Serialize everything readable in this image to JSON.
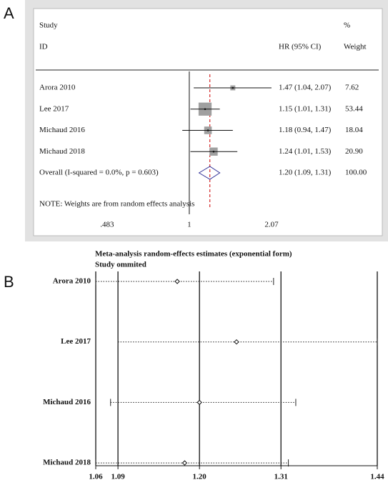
{
  "chart_data": [
    {
      "type": "forest",
      "panel": "A",
      "header": {
        "study": "Study",
        "id": "ID",
        "ci": "HR (95% CI)",
        "pct": "%",
        "weight": "Weight"
      },
      "categories": [
        "Arora 2010",
        "Lee 2017",
        "Michaud 2016",
        "Michaud 2018",
        "Overall  (I-squared = 0.0%, p = 0.603)"
      ],
      "values": [
        1.47,
        1.15,
        1.18,
        1.24,
        1.2
      ],
      "lower": [
        1.04,
        1.01,
        0.94,
        1.01,
        1.09
      ],
      "upper": [
        2.07,
        1.31,
        1.47,
        1.53,
        1.31
      ],
      "value_labels": [
        "1.47 (1.04, 2.07)",
        "1.15 (1.01, 1.31)",
        "1.18 (0.94, 1.47)",
        "1.24 (1.01, 1.53)",
        "1.20 (1.09, 1.31)"
      ],
      "weights": [
        7.62,
        53.44,
        18.04,
        20.9,
        100
      ],
      "weight_labels": [
        "7.62",
        "53.44",
        "18.04",
        "20.90",
        "100.00"
      ],
      "note": "NOTE: Weights are from random effects analysis",
      "xscale": "log",
      "xlim": [
        0.426,
        2.35
      ],
      "xticks": [
        {
          "value": 0.483,
          "label": ".483"
        },
        1,
        2.07
      ],
      "reference_line": 1,
      "square_color": "#a0a0a0",
      "diamond_color": "#333399",
      "overall_line_color": "#cc0000"
    },
    {
      "type": "sensitivity",
      "panel": "B",
      "title": "Meta-analysis random-effects estimates (exponential form)",
      "subtitle": "Study ommited",
      "categories": [
        "Arora 2010",
        "Lee 2017",
        "Michaud 2016",
        "Michaud 2018"
      ],
      "values": [
        1.17,
        1.25,
        1.2,
        1.18
      ],
      "lower": [
        1.06,
        1.09,
        1.08,
        1.06
      ],
      "upper": [
        1.3,
        1.44,
        1.33,
        1.32
      ],
      "xlim": [
        1.06,
        1.44
      ],
      "xticks": [
        1.06,
        1.09,
        {
          "value": 1.2,
          "label": "1.20"
        },
        1.31,
        1.44
      ],
      "grid": true
    }
  ]
}
